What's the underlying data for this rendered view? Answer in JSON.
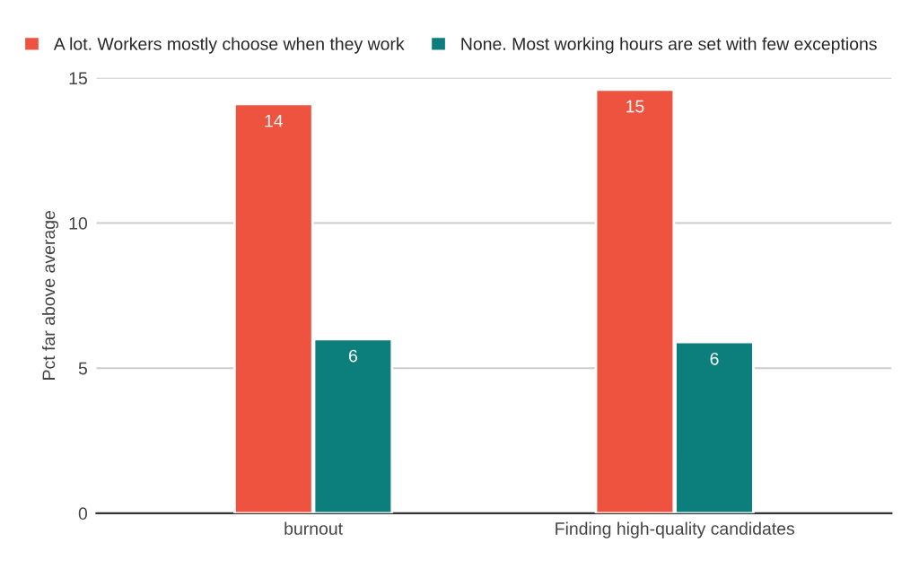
{
  "chart_data": {
    "type": "bar",
    "ylabel": "Pct far above average",
    "categories": [
      "burnout",
      "Finding high-quality candidates"
    ],
    "series": [
      {
        "name": "A lot. Workers mostly choose when they work",
        "color": "#ee5340",
        "values": [
          14.1,
          14.6
        ],
        "value_labels": [
          "14",
          "15"
        ]
      },
      {
        "name": "None. Most working hours are set with few exceptions",
        "color": "#0c7f7d",
        "values": [
          6.0,
          5.9
        ],
        "value_labels": [
          "6",
          "6"
        ]
      }
    ],
    "ylim": [
      0,
      15
    ],
    "yticks": [
      0,
      5,
      10,
      15
    ],
    "grid": "y",
    "legend": "top left"
  }
}
